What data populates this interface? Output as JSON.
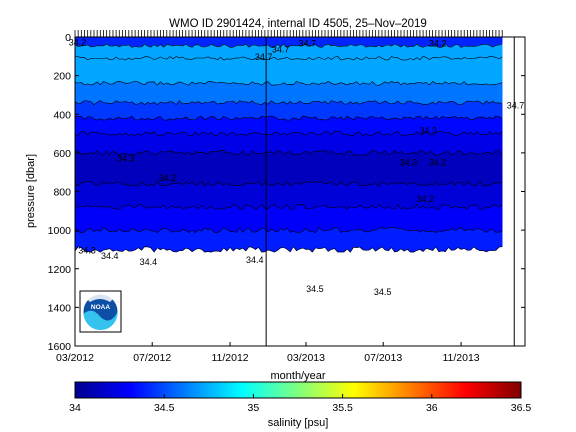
{
  "chart_data": {
    "type": "heatmap",
    "title": "WMO ID 2901424, internal ID 4505, 25–Nov–2019",
    "xlabel": "month/year",
    "ylabel": "pressure [dbar]",
    "x_ticks": [
      "03/2012",
      "07/2012",
      "11/2012",
      "03/2013",
      "07/2013",
      "11/2013"
    ],
    "x_tick_dates": [
      "2012-03-01",
      "2012-07-01",
      "2012-11-01",
      "2013-03-01",
      "2013-07-01",
      "2013-11-01"
    ],
    "xlim": [
      "2012-03-01",
      "2014-02-10"
    ],
    "y_ticks": [
      0,
      200,
      400,
      600,
      800,
      1000,
      1200,
      1400,
      1600
    ],
    "ylim": [
      0,
      1600
    ],
    "y_reversed": true,
    "profile_start": "2012-03-01",
    "profile_end": "2014-01-05",
    "profile_interval_days": 5,
    "gap_markers": [
      "2012-12-28",
      "2014-01-24"
    ],
    "salinity_layers": [
      {
        "depth_top": 0,
        "depth_bottom": 45,
        "salinity": 34.4
      },
      {
        "depth_top": 45,
        "depth_bottom": 110,
        "salinity": 34.72
      },
      {
        "depth_top": 110,
        "depth_bottom": 240,
        "salinity": 34.72
      },
      {
        "depth_top": 240,
        "depth_bottom": 340,
        "salinity": 34.6
      },
      {
        "depth_top": 340,
        "depth_bottom": 420,
        "salinity": 34.45
      },
      {
        "depth_top": 420,
        "depth_bottom": 500,
        "salinity": 34.33
      },
      {
        "depth_top": 500,
        "depth_bottom": 600,
        "salinity": 34.25
      },
      {
        "depth_top": 600,
        "depth_bottom": 760,
        "salinity": 34.15
      },
      {
        "depth_top": 760,
        "depth_bottom": 880,
        "salinity": 34.22
      },
      {
        "depth_top": 880,
        "depth_bottom": 1000,
        "salinity": 34.3
      },
      {
        "depth_top": 1000,
        "depth_bottom": 1100,
        "salinity": 34.38
      }
    ],
    "contour_labels": [
      {
        "text": "34.2",
        "date": "2012-03-05",
        "depth": 45
      },
      {
        "text": "34.7",
        "date": "2013-01-20",
        "depth": 80
      },
      {
        "text": "34.7",
        "date": "2013-03-03",
        "depth": 50
      },
      {
        "text": "34.7",
        "date": "2012-12-24",
        "depth": 120
      },
      {
        "text": "34.2",
        "date": "2013-09-25",
        "depth": 50
      },
      {
        "text": "34.7",
        "date": "2014-01-26",
        "depth": 370
      },
      {
        "text": "34.3",
        "date": "2013-09-10",
        "depth": 500
      },
      {
        "text": "34.3",
        "date": "2012-05-20",
        "depth": 645
      },
      {
        "text": "34.2",
        "date": "2012-07-25",
        "depth": 745
      },
      {
        "text": "34.3",
        "date": "2013-08-10",
        "depth": 665
      },
      {
        "text": "34.2",
        "date": "2013-09-25",
        "depth": 665
      },
      {
        "text": "34.2",
        "date": "2013-09-05",
        "depth": 855
      },
      {
        "text": "34.3",
        "date": "2012-03-20",
        "depth": 1120
      },
      {
        "text": "34.4",
        "date": "2012-04-25",
        "depth": 1150
      },
      {
        "text": "34.4",
        "date": "2012-06-25",
        "depth": 1180
      },
      {
        "text": "34.4",
        "date": "2012-12-10",
        "depth": 1170
      },
      {
        "text": "34.5",
        "date": "2013-03-15",
        "depth": 1320
      },
      {
        "text": "34.5",
        "date": "2013-06-30",
        "depth": 1335
      }
    ],
    "colorbar": {
      "label": "salinity [psu]",
      "range": [
        34,
        36.5
      ],
      "ticks": [
        "34",
        "34.5",
        "35",
        "35.5",
        "36",
        "36.5"
      ],
      "colormap": "jet"
    },
    "logo": {
      "text": "NOAA"
    }
  }
}
